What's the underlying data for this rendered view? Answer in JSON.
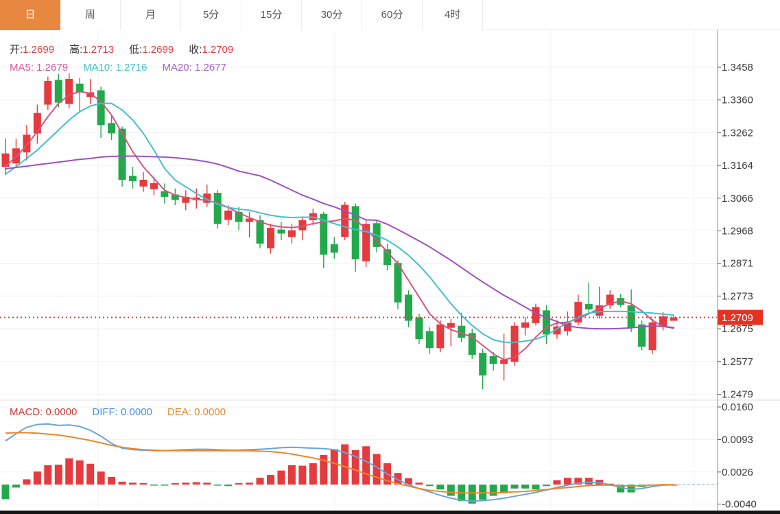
{
  "tabs": [
    {
      "label": "日",
      "active": true
    },
    {
      "label": "周",
      "active": false
    },
    {
      "label": "月",
      "active": false
    },
    {
      "label": "5分",
      "active": false
    },
    {
      "label": "15分",
      "active": false
    },
    {
      "label": "30分",
      "active": false
    },
    {
      "label": "60分",
      "active": false
    },
    {
      "label": "4时",
      "active": false
    }
  ],
  "info": {
    "ohlc": [
      {
        "label": "开:",
        "value": "1.2699"
      },
      {
        "label": "高:",
        "value": "1.2713"
      },
      {
        "label": "低:",
        "value": "1.2699"
      },
      {
        "label": "收:",
        "value": "1.2709"
      }
    ],
    "ma": [
      {
        "label": "MA5: 1.2679",
        "color": "#e0569c"
      },
      {
        "label": "MA10: 1.2716",
        "color": "#45bfcf"
      },
      {
        "label": "MA20: 1.2677",
        "color": "#a263c8"
      }
    ],
    "macd": [
      {
        "label": "MACD: 0.0000",
        "color": "#cf3732"
      },
      {
        "label": "DIFF: 0.0000",
        "color": "#4a90d9"
      },
      {
        "label": "DEA: 0.0000",
        "color": "#e8872e"
      }
    ]
  },
  "colors": {
    "tab_active_bg": "#e8873f",
    "up": "#e53a3e",
    "down": "#22a94b",
    "ma5_line": "#d8537f",
    "ma10_line": "#41c0cf",
    "ma20_line": "#9a52c0",
    "diff_line": "#6aa5d8",
    "dea_line": "#e8872e",
    "price_line": "#e03b3b",
    "badge_bg": "#e53222",
    "grid": "#f0f0f0",
    "axis_line": "#8a8a8a",
    "axis_text": "#3a3a3a"
  },
  "price_badge": {
    "value": "1.2709"
  },
  "chart_data": [
    {
      "type": "candlestick",
      "panel": "price",
      "note": "red = bullish (close>open), green = bearish; daily candles",
      "y_ticks": [
        1.3458,
        1.336,
        1.3262,
        1.3164,
        1.3066,
        1.2968,
        1.2871,
        1.2773,
        1.2675,
        1.2577,
        1.2479
      ],
      "price_line": 1.2709,
      "last_ohlc": {
        "open": 1.2699,
        "high": 1.2713,
        "low": 1.2699,
        "close": 1.2709
      },
      "candles": [
        [
          1.316,
          1.3245,
          1.3135,
          1.32
        ],
        [
          1.317,
          1.3244,
          1.3158,
          1.3215
        ],
        [
          1.3203,
          1.3285,
          1.3179,
          1.3256
        ],
        [
          1.326,
          1.3346,
          1.3229,
          1.3321
        ],
        [
          1.3346,
          1.343,
          1.333,
          1.3417
        ],
        [
          1.342,
          1.3438,
          1.3338,
          1.3352
        ],
        [
          1.3348,
          1.344,
          1.3335,
          1.3423
        ],
        [
          1.3409,
          1.3427,
          1.3325,
          1.3383
        ],
        [
          1.3369,
          1.3423,
          1.3348,
          1.3383
        ],
        [
          1.3389,
          1.34,
          1.3246,
          1.3285
        ],
        [
          1.3291,
          1.3315,
          1.324,
          1.326
        ],
        [
          1.3274,
          1.328,
          1.3101,
          1.3121
        ],
        [
          1.3133,
          1.316,
          1.3095,
          1.3117
        ],
        [
          1.3101,
          1.3144,
          1.3085,
          1.3121
        ],
        [
          1.3093,
          1.313,
          1.3075,
          1.3111
        ],
        [
          1.3087,
          1.311,
          1.305,
          1.307
        ],
        [
          1.3077,
          1.3095,
          1.3045,
          1.3061
        ],
        [
          1.3052,
          1.309,
          1.303,
          1.307
        ],
        [
          1.306,
          1.3095,
          1.3035,
          1.3068
        ],
        [
          1.3052,
          1.3107,
          1.304,
          1.308
        ],
        [
          1.3082,
          1.309,
          1.2975,
          1.2989
        ],
        [
          1.3001,
          1.3045,
          1.2985,
          1.3029
        ],
        [
          1.3025,
          1.304,
          1.297,
          1.2995
        ],
        [
          1.2995,
          1.3025,
          1.2948,
          1.3005
        ],
        [
          1.3,
          1.3015,
          1.2916,
          1.293
        ],
        [
          1.2916,
          1.299,
          1.29,
          1.2977
        ],
        [
          1.2972,
          1.2995,
          1.294,
          1.296
        ],
        [
          1.295,
          1.299,
          1.293,
          1.297
        ],
        [
          1.297,
          1.301,
          1.294,
          1.3
        ],
        [
          1.3,
          1.3035,
          1.2985,
          1.3021
        ],
        [
          1.3019,
          1.3025,
          1.2856,
          1.2897
        ],
        [
          1.2928,
          1.295,
          1.2885,
          1.2903
        ],
        [
          1.295,
          1.3055,
          1.294,
          1.3046
        ],
        [
          1.3042,
          1.305,
          1.2846,
          1.2883
        ],
        [
          1.2877,
          1.3,
          1.286,
          1.2989
        ],
        [
          1.2991,
          1.3,
          1.2904,
          1.292
        ],
        [
          1.2913,
          1.293,
          1.285,
          1.2866
        ],
        [
          1.2872,
          1.288,
          1.2734,
          1.2754
        ],
        [
          1.2777,
          1.279,
          1.268,
          1.2699
        ],
        [
          1.2709,
          1.272,
          1.263,
          1.2644
        ],
        [
          1.2668,
          1.268,
          1.26,
          1.2617
        ],
        [
          1.2617,
          1.27,
          1.2605,
          1.2688
        ],
        [
          1.2678,
          1.2705,
          1.2623,
          1.2692
        ],
        [
          1.2684,
          1.2723,
          1.2635,
          1.2648
        ],
        [
          1.2662,
          1.2675,
          1.2585,
          1.2597
        ],
        [
          1.2603,
          1.2615,
          1.2494,
          1.2535
        ],
        [
          1.2593,
          1.2605,
          1.255,
          1.257
        ],
        [
          1.257,
          1.266,
          1.252,
          1.2582
        ],
        [
          1.2576,
          1.2695,
          1.2565,
          1.2684
        ],
        [
          1.2678,
          1.271,
          1.2655,
          1.2694
        ],
        [
          1.2692,
          1.275,
          1.2685,
          1.274
        ],
        [
          1.273,
          1.2746,
          1.263,
          1.2658
        ],
        [
          1.2658,
          1.27,
          1.2645,
          1.2682
        ],
        [
          1.2668,
          1.2727,
          1.2655,
          1.2694
        ],
        [
          1.2694,
          1.2777,
          1.2685,
          1.2755
        ],
        [
          1.2749,
          1.2814,
          1.272,
          1.2733
        ],
        [
          1.2714,
          1.2801,
          1.2705,
          1.2745
        ],
        [
          1.2745,
          1.279,
          1.2735,
          1.2777
        ],
        [
          1.2767,
          1.278,
          1.274,
          1.2747
        ],
        [
          1.2745,
          1.2793,
          1.2665,
          1.2678
        ],
        [
          1.2688,
          1.27,
          1.261,
          1.2621
        ],
        [
          1.2611,
          1.2705,
          1.26,
          1.2694
        ],
        [
          1.2682,
          1.2725,
          1.267,
          1.2712
        ],
        [
          1.2699,
          1.2713,
          1.2699,
          1.2709
        ]
      ],
      "overlays": [
        {
          "name": "MA5",
          "current": 1.2679,
          "values": [
            1.3162,
            1.319,
            1.3225,
            1.3265,
            1.331,
            1.335,
            1.3375,
            1.3385,
            1.338,
            1.3355,
            1.3315,
            1.326,
            1.3205,
            1.316,
            1.3125,
            1.309,
            1.3075,
            1.3068,
            1.3062,
            1.306,
            1.3052,
            1.3038,
            1.3022,
            1.3008,
            1.2995,
            1.2985,
            1.298,
            1.2978,
            1.2982,
            1.299,
            1.2995,
            1.2998,
            1.3005,
            1.3,
            1.2975,
            1.294,
            1.2905,
            1.287,
            1.282,
            1.277,
            1.272,
            1.269,
            1.2672,
            1.2662,
            1.265,
            1.2625,
            1.26,
            1.2582,
            1.259,
            1.2615,
            1.265,
            1.268,
            1.2692,
            1.2695,
            1.2705,
            1.272,
            1.2736,
            1.275,
            1.2758,
            1.275,
            1.2728,
            1.27,
            1.2682,
            1.2679
          ]
        },
        {
          "name": "MA10",
          "current": 1.2716,
          "values": [
            1.3138,
            1.316,
            1.3185,
            1.321,
            1.324,
            1.327,
            1.33,
            1.3325,
            1.3342,
            1.335,
            1.335,
            1.333,
            1.33,
            1.326,
            1.321,
            1.3155,
            1.312,
            1.31,
            1.308,
            1.3062,
            1.3048,
            1.3038,
            1.3033,
            1.303,
            1.3022,
            1.3015,
            1.301,
            1.3008,
            1.3009,
            1.3009,
            1.3,
            1.299,
            1.298,
            1.2972,
            1.2966,
            1.2955,
            1.294,
            1.292,
            1.2895,
            1.2865,
            1.283,
            1.279,
            1.275,
            1.2715,
            1.2685,
            1.266,
            1.2642,
            1.2635,
            1.2634,
            1.2638,
            1.2644,
            1.2655,
            1.2675,
            1.2693,
            1.271,
            1.2722,
            1.2726,
            1.2727,
            1.2727,
            1.2726,
            1.2724,
            1.2722,
            1.2719,
            1.2716
          ]
        },
        {
          "name": "MA20",
          "current": 1.2677,
          "values": [
            1.3154,
            1.3158,
            1.3162,
            1.3166,
            1.317,
            1.3174,
            1.3178,
            1.3182,
            1.3185,
            1.3189,
            1.3191,
            1.3192,
            1.3192,
            1.3191,
            1.319,
            1.3189,
            1.3187,
            1.3184,
            1.318,
            1.3175,
            1.3168,
            1.3158,
            1.3147,
            1.314,
            1.3133,
            1.312,
            1.3105,
            1.309,
            1.3075,
            1.3063,
            1.305,
            1.304,
            1.3028,
            1.3015,
            1.3001,
            1.3,
            1.2988,
            1.2972,
            1.2955,
            1.2938,
            1.292,
            1.29,
            1.288,
            1.2858,
            1.2836,
            1.2815,
            1.2795,
            1.2775,
            1.2758,
            1.274,
            1.2722,
            1.2708,
            1.2697,
            1.2683,
            1.2679,
            1.2676,
            1.2675,
            1.2675,
            1.2676,
            1.2678,
            1.2681,
            1.2684,
            1.2682,
            1.2677
          ]
        }
      ]
    },
    {
      "type": "macd",
      "panel": "indicator",
      "y_ticks": [
        0.016,
        0.0093,
        0.0026,
        -0.004
      ],
      "current": {
        "macd": 0.0,
        "diff": 0.0,
        "dea": 0.0
      },
      "hist": [
        -0.003,
        -0.0006,
        0.0011,
        0.0027,
        0.004,
        0.0041,
        0.0054,
        0.005,
        0.0043,
        0.0027,
        0.0016,
        0.0006,
        0.0004,
        0.0003,
        -0.0002,
        -0.0002,
        0.0003,
        0.0004,
        0.0005,
        0.0004,
        -0.0002,
        -0.0003,
        0.0003,
        0.0004,
        0.0014,
        0.002,
        0.0029,
        0.004,
        0.0039,
        0.0044,
        0.0061,
        0.0073,
        0.0083,
        0.0071,
        0.0079,
        0.0063,
        0.0044,
        0.0024,
        0.0013,
        0.0004,
        -0.0003,
        -0.001,
        -0.0023,
        -0.0034,
        -0.0039,
        -0.0031,
        -0.0023,
        -0.0018,
        -0.0008,
        -0.0008,
        -0.001,
        -0.0003,
        0.0009,
        0.0014,
        0.0014,
        0.0014,
        0.001,
        0.0002,
        -0.0016,
        -0.0016,
        -0.0005,
        -0.0001,
        0.0,
        0.0
      ],
      "diff": [
        0.009,
        0.0105,
        0.0118,
        0.0124,
        0.0125,
        0.0122,
        0.0123,
        0.012,
        0.0112,
        0.01,
        0.0085,
        0.0075,
        0.0072,
        0.0071,
        0.007,
        0.007,
        0.0071,
        0.0072,
        0.0073,
        0.0073,
        0.0072,
        0.0071,
        0.0071,
        0.0072,
        0.0073,
        0.0074,
        0.0076,
        0.0077,
        0.0076,
        0.0075,
        0.0074,
        0.0072,
        0.0066,
        0.0058,
        0.0048,
        0.0036,
        0.0022,
        0.001,
        0.0,
        -0.0008,
        -0.0015,
        -0.0022,
        -0.0028,
        -0.0032,
        -0.0034,
        -0.0033,
        -0.0031,
        -0.0028,
        -0.0024,
        -0.002,
        -0.0016,
        -0.0011,
        -0.0006,
        -0.0001,
        0.0003,
        0.0005,
        0.0004,
        0.0,
        -0.0006,
        -0.001,
        -0.0008,
        -0.0004,
        -0.0001,
        0.0
      ],
      "dea": [
        0.0106,
        0.0107,
        0.0107,
        0.0106,
        0.0104,
        0.0102,
        0.0099,
        0.0095,
        0.0091,
        0.0086,
        0.0081,
        0.0077,
        0.0074,
        0.0072,
        0.0071,
        0.007,
        0.007,
        0.007,
        0.007,
        0.007,
        0.007,
        0.007,
        0.007,
        0.007,
        0.0069,
        0.0068,
        0.0066,
        0.0063,
        0.0059,
        0.0055,
        0.005,
        0.0044,
        0.0037,
        0.003,
        0.0022,
        0.0015,
        0.0008,
        0.0002,
        -0.0003,
        -0.0008,
        -0.0012,
        -0.0014,
        -0.0016,
        -0.0017,
        -0.0017,
        -0.0017,
        -0.0017,
        -0.0016,
        -0.0015,
        -0.0014,
        -0.0012,
        -0.001,
        -0.0008,
        -0.0006,
        -0.0004,
        -0.0002,
        -0.0001,
        -0.0001,
        -0.0002,
        -0.0003,
        -0.0002,
        -0.0001,
        0.0,
        0.0
      ]
    }
  ]
}
